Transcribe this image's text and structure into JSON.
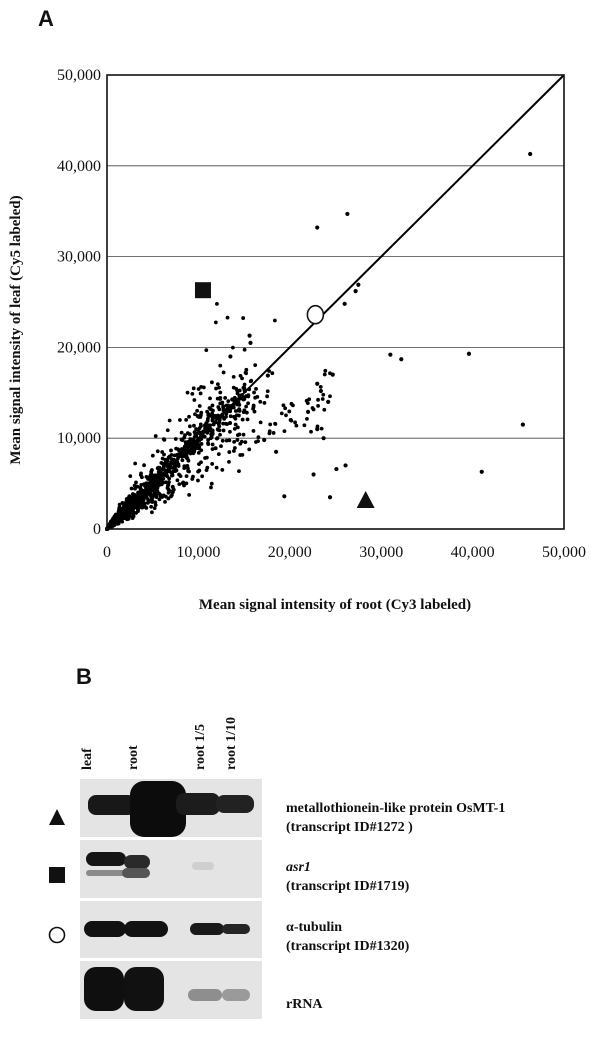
{
  "panel_a": {
    "letter": "A",
    "chart_data": {
      "type": "scatter",
      "xlabel": "Mean signal intensity of root (Cy3 labeled)",
      "ylabel": "Mean signal intensity of leaf (Cy5 labeled)",
      "xlim": [
        0,
        50000
      ],
      "ylim": [
        0,
        50000
      ],
      "x_tick_labels": [
        "0",
        "10,000",
        "20,000",
        "30,000",
        "40,000",
        "50,000"
      ],
      "y_tick_labels": [
        "0",
        "10,000",
        "20,000",
        "30,000",
        "40,000",
        "50,000"
      ],
      "grid": "horizontal",
      "reference_line": {
        "from": [
          0,
          0
        ],
        "to": [
          50000,
          50000
        ]
      },
      "highlighted": [
        {
          "marker": "square",
          "x": 10500,
          "y": 26300
        },
        {
          "marker": "circle",
          "x": 22800,
          "y": 23600
        },
        {
          "marker": "triangle",
          "x": 28300,
          "y": 3200
        }
      ],
      "outliers": [
        [
          46300,
          41300
        ],
        [
          26300,
          34700
        ],
        [
          23000,
          33200
        ],
        [
          27500,
          26900
        ],
        [
          27200,
          26200
        ],
        [
          26000,
          24800
        ],
        [
          15600,
          21300
        ],
        [
          15700,
          20500
        ],
        [
          13500,
          19000
        ],
        [
          31000,
          19200
        ],
        [
          32200,
          18700
        ],
        [
          39600,
          19300
        ],
        [
          24700,
          17000
        ],
        [
          17600,
          16900
        ],
        [
          23000,
          16000
        ],
        [
          23400,
          15200
        ],
        [
          24200,
          14000
        ],
        [
          45500,
          11500
        ],
        [
          23000,
          11000
        ],
        [
          23700,
          10000
        ],
        [
          26100,
          7000
        ],
        [
          25100,
          6600
        ],
        [
          22600,
          6000
        ],
        [
          41000,
          6300
        ],
        [
          24400,
          3500
        ],
        [
          19400,
          3600
        ],
        [
          18500,
          8500
        ],
        [
          17200,
          9800
        ],
        [
          20100,
          12000
        ],
        [
          22000,
          12900
        ]
      ]
    }
  },
  "panel_b": {
    "letter": "B",
    "lanes": [
      "leaf",
      "root",
      "root 1/5",
      "root 1/10"
    ],
    "rows": [
      {
        "marker": "triangle",
        "line1": "metallothionein-like protein OsMT-1",
        "line2": "(transcript ID#1272 )"
      },
      {
        "marker": "square",
        "line1": "asr1",
        "line2": "(transcript ID#1719)"
      },
      {
        "marker": "circle",
        "line1": "α-tubulin",
        "line2": "(transcript ID#1320)"
      },
      {
        "marker": "none",
        "line1": "rRNA",
        "line2": ""
      }
    ]
  }
}
